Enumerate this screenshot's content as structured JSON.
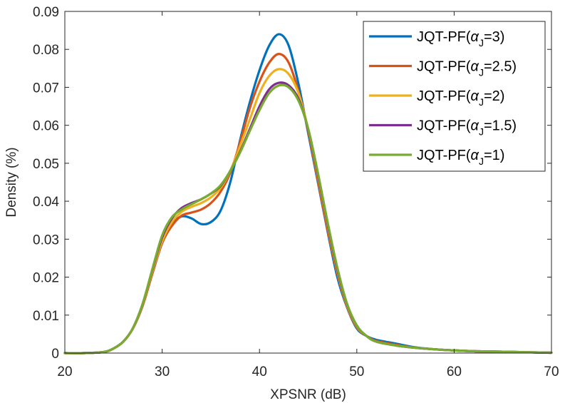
{
  "chart_data": {
    "type": "line",
    "xlabel": "XPSNR (dB)",
    "ylabel": "Density (%)",
    "xlim": [
      20,
      70
    ],
    "ylim": [
      0,
      0.09
    ],
    "x_ticks": [
      20,
      30,
      40,
      50,
      60,
      70
    ],
    "x_tick_labels": [
      "20",
      "30",
      "40",
      "50",
      "60",
      "70"
    ],
    "y_ticks": [
      0,
      0.01,
      0.02,
      0.03,
      0.04,
      0.05,
      0.06,
      0.07,
      0.08,
      0.09
    ],
    "y_tick_labels": [
      "0",
      "0.01",
      "0.02",
      "0.03",
      "0.04",
      "0.05",
      "0.06",
      "0.07",
      "0.08",
      "0.09"
    ],
    "grid": false,
    "legend_position": "top-right",
    "x": [
      20,
      22,
      24,
      25,
      26,
      27,
      28,
      29,
      30,
      31,
      32,
      33,
      34,
      35,
      36,
      37,
      38,
      39,
      40,
      41,
      42,
      43,
      44,
      45,
      46,
      47,
      48,
      49,
      50,
      51,
      52,
      54,
      56,
      58,
      60,
      62,
      64,
      66,
      68,
      70
    ],
    "series": [
      {
        "name": "JQT-PF(α_J=3)",
        "legend_prefix": "JQT-PF(",
        "legend_symbol": "α",
        "legend_sub": "J",
        "legend_suffix": "=3)",
        "color": "#0072BD",
        "values": [
          0,
          0,
          0.0003,
          0.0012,
          0.003,
          0.0065,
          0.0125,
          0.021,
          0.029,
          0.034,
          0.036,
          0.0355,
          0.034,
          0.0345,
          0.0375,
          0.045,
          0.056,
          0.066,
          0.0745,
          0.081,
          0.084,
          0.081,
          0.071,
          0.058,
          0.045,
          0.032,
          0.02,
          0.012,
          0.0065,
          0.0045,
          0.0035,
          0.0025,
          0.0015,
          0.001,
          0.0007,
          0.0005,
          0.0004,
          0.0003,
          0.0002,
          0.0001
        ]
      },
      {
        "name": "JQT-PF(α_J=2.5)",
        "legend_prefix": "JQT-PF(",
        "legend_symbol": "α",
        "legend_sub": "J",
        "legend_suffix": "=2.5)",
        "color": "#D95319",
        "values": [
          0,
          0,
          0.0003,
          0.0012,
          0.003,
          0.0065,
          0.0125,
          0.021,
          0.029,
          0.0335,
          0.0362,
          0.037,
          0.0378,
          0.0395,
          0.0425,
          0.0475,
          0.0555,
          0.0645,
          0.0715,
          0.0765,
          0.0788,
          0.0765,
          0.069,
          0.0585,
          0.0455,
          0.0325,
          0.021,
          0.0122,
          0.0068,
          0.0045,
          0.0032,
          0.0022,
          0.0014,
          0.001,
          0.0007,
          0.0005,
          0.0004,
          0.0003,
          0.0002,
          0.0001
        ]
      },
      {
        "name": "JQT-PF(α_J=2)",
        "legend_prefix": "JQT-PF(",
        "legend_symbol": "α",
        "legend_sub": "J",
        "legend_suffix": "=2)",
        "color": "#EDB120",
        "values": [
          0,
          0,
          0.0003,
          0.0012,
          0.003,
          0.0065,
          0.0128,
          0.0215,
          0.0295,
          0.0345,
          0.0372,
          0.0385,
          0.0395,
          0.041,
          0.0435,
          0.048,
          0.0545,
          0.0615,
          0.0685,
          0.073,
          0.0748,
          0.0735,
          0.0685,
          0.059,
          0.0465,
          0.0335,
          0.0215,
          0.0125,
          0.007,
          0.0045,
          0.003,
          0.002,
          0.0014,
          0.001,
          0.0007,
          0.0005,
          0.0004,
          0.0003,
          0.0002,
          0.0001
        ]
      },
      {
        "name": "JQT-PF(α_J=1.5)",
        "legend_prefix": "JQT-PF(",
        "legend_symbol": "α",
        "legend_sub": "J",
        "legend_suffix": "=1.5)",
        "color": "#7E2F8E",
        "values": [
          0,
          0,
          0.0003,
          0.0012,
          0.003,
          0.0066,
          0.013,
          0.022,
          0.0305,
          0.0355,
          0.0382,
          0.0395,
          0.0405,
          0.042,
          0.044,
          0.048,
          0.053,
          0.059,
          0.065,
          0.0695,
          0.0712,
          0.0705,
          0.067,
          0.059,
          0.047,
          0.034,
          0.022,
          0.0128,
          0.0072,
          0.0045,
          0.003,
          0.002,
          0.0014,
          0.001,
          0.0007,
          0.0005,
          0.0004,
          0.0003,
          0.0002,
          0.0001
        ]
      },
      {
        "name": "JQT-PF(α_J=1)",
        "legend_prefix": "JQT-PF(",
        "legend_symbol": "α",
        "legend_sub": "J",
        "legend_suffix": "=1)",
        "color": "#77AC30",
        "values": [
          0,
          0,
          0.0003,
          0.0012,
          0.003,
          0.0066,
          0.013,
          0.0222,
          0.031,
          0.0358,
          0.0378,
          0.0392,
          0.0405,
          0.042,
          0.0442,
          0.048,
          0.0528,
          0.0585,
          0.064,
          0.0685,
          0.0705,
          0.07,
          0.0665,
          0.0592,
          0.0475,
          0.0345,
          0.0225,
          0.013,
          0.0073,
          0.0045,
          0.003,
          0.002,
          0.0014,
          0.001,
          0.0007,
          0.0005,
          0.0004,
          0.0003,
          0.0002,
          0.0001
        ]
      }
    ]
  }
}
